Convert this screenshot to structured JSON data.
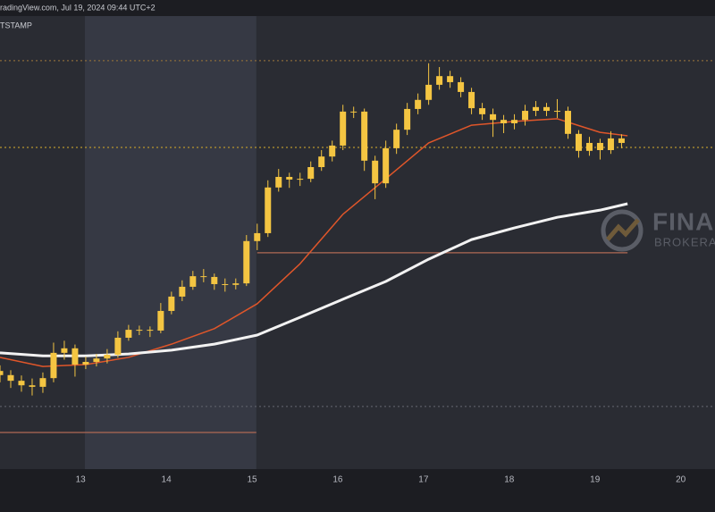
{
  "chart_data": {
    "type": "candlestick",
    "header": "radingView.com, Jul 19, 2024 09:44 UTC+2",
    "source": "TSTAMP",
    "watermark": {
      "title": "FINAN",
      "subtitle": "BROKERAGE"
    },
    "color": "#f4c542",
    "x": [
      12.06,
      12.185,
      12.31,
      12.435,
      12.56,
      12.685,
      12.81,
      12.935,
      13.06,
      13.185,
      13.31,
      13.435,
      13.56,
      13.685,
      13.81,
      13.935,
      14.06,
      14.185,
      14.31,
      14.435,
      14.56,
      14.685,
      14.81,
      14.935,
      15.06,
      15.185,
      15.31,
      15.435,
      15.56,
      15.685,
      15.81,
      15.935,
      16.06,
      16.185,
      16.31,
      16.435,
      16.56,
      16.685,
      16.81,
      16.935,
      17.06,
      17.185,
      17.31,
      17.435,
      17.56,
      17.685,
      17.81,
      17.935,
      18.06,
      18.185,
      18.31,
      18.435,
      18.56,
      18.685,
      18.81,
      18.935,
      19.06,
      19.185,
      19.31
    ],
    "open": [
      57600,
      57490,
      57340,
      57220,
      57180,
      57410,
      58080,
      58200,
      57770,
      57840,
      57930,
      58030,
      58480,
      58690,
      58690,
      58670,
      59190,
      59570,
      59830,
      60110,
      60090,
      59900,
      59880,
      59920,
      61040,
      61250,
      62460,
      62740,
      62670,
      62690,
      63000,
      63280,
      63570,
      64470,
      64470,
      63170,
      62570,
      63500,
      63990,
      64540,
      64780,
      65180,
      65410,
      65250,
      64990,
      64560,
      64400,
      64250,
      64160,
      64250,
      64490,
      64590,
      64490,
      64490,
      63880,
      63430,
      63640,
      63450,
      63760
    ],
    "high": [
      57750,
      57620,
      57480,
      57400,
      57560,
      58350,
      58400,
      58300,
      57980,
      58050,
      58180,
      58650,
      58820,
      58800,
      58780,
      59400,
      59700,
      60000,
      60250,
      60300,
      60180,
      60050,
      60050,
      61200,
      61500,
      62650,
      62950,
      62850,
      62850,
      63150,
      63450,
      63700,
      64650,
      64600,
      64550,
      63300,
      63700,
      64150,
      64700,
      64950,
      65750,
      65650,
      65550,
      65380,
      65100,
      64700,
      64550,
      64380,
      64400,
      64650,
      64750,
      64700,
      64800,
      64600,
      63980,
      63800,
      63750,
      63950,
      63870
    ],
    "low": [
      57300,
      57150,
      57050,
      56950,
      57020,
      57300,
      57900,
      57450,
      57650,
      57720,
      57800,
      57950,
      58400,
      58550,
      58500,
      58600,
      59100,
      59450,
      59750,
      59950,
      59750,
      59700,
      59760,
      59850,
      60800,
      61150,
      62350,
      62450,
      62500,
      62600,
      62900,
      63150,
      63450,
      64300,
      62900,
      62150,
      62450,
      63350,
      63850,
      64400,
      64650,
      65050,
      65100,
      64850,
      64400,
      64250,
      63800,
      63900,
      64000,
      64100,
      64350,
      64350,
      64300,
      63750,
      63250,
      63300,
      63200,
      63350,
      63500
    ],
    "close": [
      57490,
      57340,
      57220,
      57180,
      57410,
      58080,
      58200,
      57770,
      57840,
      57930,
      58030,
      58480,
      58690,
      58690,
      58670,
      59190,
      59570,
      59830,
      60110,
      60090,
      59900,
      59880,
      59920,
      61040,
      61250,
      62460,
      62740,
      62670,
      62690,
      63000,
      63280,
      63570,
      64470,
      64470,
      63170,
      62570,
      63500,
      63990,
      64540,
      64780,
      65180,
      65410,
      65250,
      64990,
      64560,
      64400,
      64250,
      64160,
      64250,
      64490,
      64590,
      64490,
      64490,
      63880,
      63430,
      63640,
      63450,
      63760,
      63640
    ],
    "moving_averages": [
      {
        "color": "#e0562a",
        "width": 1.5,
        "x": [
          12.06,
          12.56,
          13.06,
          13.56,
          14.06,
          14.56,
          15.06,
          15.56,
          16.06,
          16.56,
          17.06,
          17.56,
          18.06,
          18.56,
          19.06,
          19.38
        ],
        "values": [
          57960,
          57720,
          57770,
          57960,
          58310,
          58720,
          59380,
          60440,
          61750,
          62690,
          63640,
          64110,
          64210,
          64280,
          63920,
          63830
        ]
      },
      {
        "color": "#f2f2f2",
        "width": 3,
        "x": [
          12.06,
          12.56,
          13.06,
          13.56,
          14.06,
          14.56,
          15.06,
          15.56,
          16.06,
          16.56,
          17.06,
          17.56,
          18.06,
          18.56,
          19.06,
          19.38
        ],
        "values": [
          58080,
          58000,
          58000,
          58050,
          58150,
          58310,
          58550,
          59020,
          59500,
          59970,
          60560,
          61080,
          61390,
          61670,
          61860,
          62030
        ]
      }
    ],
    "levels": [
      {
        "value": 65820,
        "color": "#8a6a3a",
        "dashed": true
      },
      {
        "value": 63520,
        "color": "#b8962e",
        "dashed": true
      },
      {
        "value": 60730,
        "color": "#b06a55",
        "dashed": false,
        "from": 15.06,
        "to": 19.38
      },
      {
        "value": 56660,
        "color": "#5a5d66",
        "dashed": true
      },
      {
        "value": 55970,
        "color": "#b06a55",
        "dashed": false,
        "from": 12.06,
        "to": 15.05
      }
    ],
    "highlight": [
      13.05,
      15.05
    ],
    "xlim": [
      12.06,
      20.4
    ],
    "xticks": [
      13,
      14,
      15,
      16,
      17,
      18,
      19,
      20
    ],
    "ylim": [
      55000,
      67000
    ]
  }
}
